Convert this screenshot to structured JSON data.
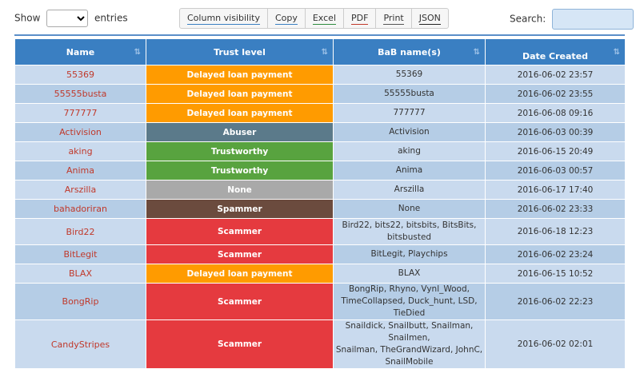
{
  "controls": {
    "show_label": "Show",
    "entries_label": "entries",
    "search_label": "Search:",
    "search_value": ""
  },
  "toolbar": [
    {
      "label": "Column visibility",
      "underline": "#3a7fc2"
    },
    {
      "label": "Copy",
      "underline": "#3a7fc2"
    },
    {
      "label": "Excel",
      "underline": "#2e8b3e"
    },
    {
      "label": "PDF",
      "underline": "#c0392b"
    },
    {
      "label": "Print",
      "underline": "#555555"
    },
    {
      "label": "JSON",
      "underline": "#222222"
    }
  ],
  "table": {
    "columns": [
      "Name",
      "Trust level",
      "BaB name(s)",
      "Date Created"
    ],
    "trust_colors": {
      "Delayed loan payment": "#ff9b00",
      "Abuser": "#5b7a8a",
      "Trustworthy": "#58a33f",
      "None": "#a9a9a9",
      "Spammer": "#6b4b3e",
      "Scammer": "#e53a3f"
    },
    "rows": [
      {
        "name": "55369",
        "trust": "Delayed loan payment",
        "bab": [
          "55369"
        ],
        "date": "2016-06-02 23:57"
      },
      {
        "name": "55555busta",
        "trust": "Delayed loan payment",
        "bab": [
          "55555busta"
        ],
        "date": "2016-06-02 23:55"
      },
      {
        "name": "777777",
        "trust": "Delayed loan payment",
        "bab": [
          "777777"
        ],
        "date": "2016-06-08 09:16"
      },
      {
        "name": "Activision",
        "trust": "Abuser",
        "bab": [
          "Activision"
        ],
        "date": "2016-06-03 00:39"
      },
      {
        "name": "aking",
        "trust": "Trustworthy",
        "bab": [
          "aking"
        ],
        "date": "2016-06-15 20:49"
      },
      {
        "name": "Anima",
        "trust": "Trustworthy",
        "bab": [
          "Anima"
        ],
        "date": "2016-06-03 00:57"
      },
      {
        "name": "Arszilla",
        "trust": "None",
        "bab": [
          "Arszilla"
        ],
        "date": "2016-06-17 17:40"
      },
      {
        "name": "bahadoriran",
        "trust": "Spammer",
        "bab": [
          "None"
        ],
        "date": "2016-06-02 23:33"
      },
      {
        "name": "Bird22",
        "trust": "Scammer",
        "bab": [
          "Bird22, bits22, bitsbits, BitsBits,",
          "bitsbusted"
        ],
        "date": "2016-06-18 12:23"
      },
      {
        "name": "BitLegit",
        "trust": "Scammer",
        "bab": [
          "BitLegit, Playchips"
        ],
        "date": "2016-06-02 23:24"
      },
      {
        "name": "BLAX",
        "trust": "Delayed loan payment",
        "bab": [
          "BLAX"
        ],
        "date": "2016-06-15 10:52"
      },
      {
        "name": "BongRip",
        "trust": "Scammer",
        "bab": [
          "BongRip, Rhyno, Vynl_Wood,",
          "TimeCollapsed, Duck_hunt, LSD, TieDied"
        ],
        "date": "2016-06-02 22:23"
      },
      {
        "name": "CandyStripes",
        "trust": "Scammer",
        "bab": [
          "Snaildick, Snailbutt, Snailman, Snailmen,",
          "Snailman, TheGrandWizard, JohnC,",
          "SnailMobile"
        ],
        "date": "2016-06-02 02:01"
      }
    ]
  }
}
